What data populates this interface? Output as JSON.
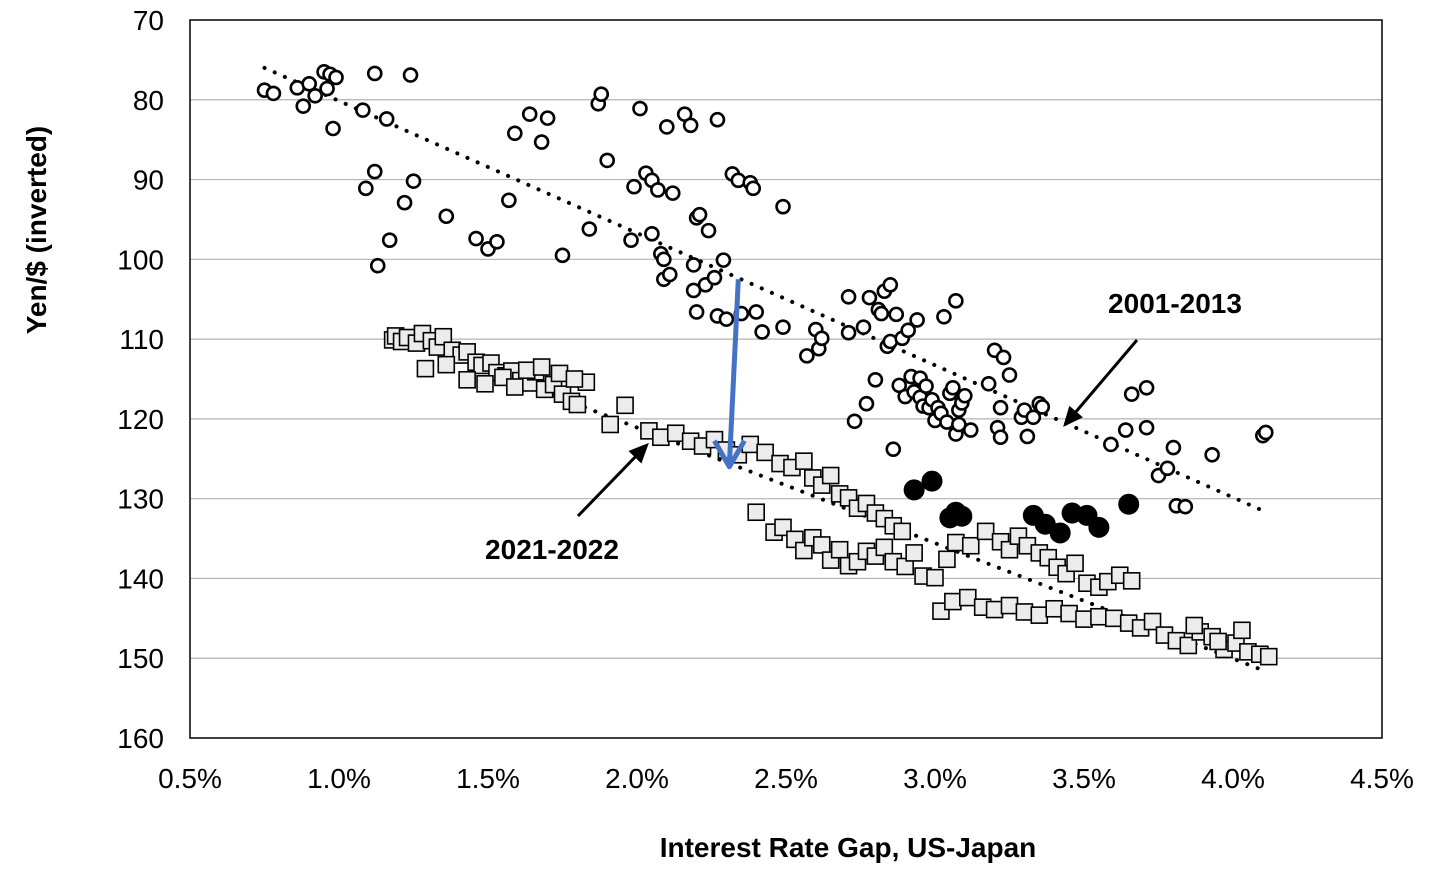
{
  "chart_data": {
    "type": "scatter",
    "title": "",
    "xlabel": "Interest Rate Gap, US-Japan",
    "ylabel": "Yen/$ (inverted)",
    "xlim": [
      0.5,
      4.5
    ],
    "ylim": [
      160,
      70
    ],
    "y_inverted": true,
    "grid": "horizontal",
    "x_ticks": [
      0.5,
      1.0,
      1.5,
      2.0,
      2.5,
      3.0,
      3.5,
      4.0,
      4.5
    ],
    "x_tick_labels": [
      "0.5%",
      "1.0%",
      "1.5%",
      "2.0%",
      "2.5%",
      "3.0%",
      "3.5%",
      "4.0%",
      "4.5%"
    ],
    "y_ticks": [
      70,
      80,
      90,
      100,
      110,
      120,
      130,
      140,
      150,
      160
    ],
    "y_tick_labels": [
      "70",
      "80",
      "90",
      "100",
      "110",
      "120",
      "130",
      "140",
      "150",
      "160"
    ],
    "annotations": [
      {
        "text": "2001-2013",
        "points_to": [
          3.43,
          121
        ]
      },
      {
        "text": "2021-2022",
        "points_to": [
          2.04,
          123
        ]
      }
    ],
    "shift_arrow": {
      "from": [
        2.34,
        102.5
      ],
      "to": [
        2.31,
        126
      ],
      "color": "#4472c4"
    },
    "trendlines": [
      {
        "period": "2001-2013",
        "from": [
          0.75,
          76
        ],
        "to": [
          4.1,
          131.5
        ]
      },
      {
        "period": "2021-2022",
        "from": [
          1.2,
          109.5
        ],
        "to": [
          4.1,
          151.5
        ]
      }
    ],
    "series": [
      {
        "marker": "open-circle",
        "points": [
          [
            0.75,
            78.8
          ],
          [
            0.78,
            79.2
          ],
          [
            0.86,
            78.5
          ],
          [
            0.88,
            80.8
          ],
          [
            0.9,
            78.0
          ],
          [
            0.92,
            79.5
          ],
          [
            0.95,
            76.5
          ],
          [
            0.96,
            78.6
          ],
          [
            0.97,
            76.8
          ],
          [
            0.99,
            77.2
          ],
          [
            0.98,
            83.6
          ],
          [
            1.08,
            81.3
          ],
          [
            1.12,
            76.7
          ],
          [
            1.16,
            82.4
          ],
          [
            1.24,
            76.9
          ],
          [
            1.09,
            91.1
          ],
          [
            1.12,
            89.0
          ],
          [
            1.13,
            100.8
          ],
          [
            1.17,
            97.6
          ],
          [
            1.22,
            92.9
          ],
          [
            1.25,
            90.2
          ],
          [
            1.36,
            94.6
          ],
          [
            1.46,
            97.4
          ],
          [
            1.5,
            98.7
          ],
          [
            1.53,
            97.8
          ],
          [
            1.57,
            92.6
          ],
          [
            1.59,
            84.2
          ],
          [
            1.64,
            81.8
          ],
          [
            1.68,
            85.3
          ],
          [
            1.7,
            82.3
          ],
          [
            1.75,
            99.5
          ],
          [
            1.84,
            96.2
          ],
          [
            1.87,
            80.5
          ],
          [
            1.88,
            79.3
          ],
          [
            1.9,
            87.6
          ],
          [
            1.98,
            97.6
          ],
          [
            1.99,
            90.9
          ],
          [
            2.01,
            81.1
          ],
          [
            2.03,
            89.2
          ],
          [
            2.05,
            90.1
          ],
          [
            2.05,
            96.8
          ],
          [
            2.07,
            91.3
          ],
          [
            2.08,
            99.3
          ],
          [
            2.09,
            102.5
          ],
          [
            2.09,
            100.0
          ],
          [
            2.1,
            83.4
          ],
          [
            2.11,
            101.9
          ],
          [
            2.12,
            91.7
          ],
          [
            2.16,
            81.8
          ],
          [
            2.18,
            83.2
          ],
          [
            2.19,
            100.7
          ],
          [
            2.19,
            103.9
          ],
          [
            2.2,
            94.8
          ],
          [
            2.2,
            106.6
          ],
          [
            2.21,
            94.4
          ],
          [
            2.23,
            103.2
          ],
          [
            2.24,
            96.4
          ],
          [
            2.26,
            102.3
          ],
          [
            2.27,
            82.5
          ],
          [
            2.27,
            107.1
          ],
          [
            2.29,
            100.1
          ],
          [
            2.3,
            107.5
          ],
          [
            2.32,
            89.3
          ],
          [
            2.34,
            90.1
          ],
          [
            2.35,
            106.8
          ],
          [
            2.38,
            90.4
          ],
          [
            2.39,
            91.1
          ],
          [
            2.4,
            106.6
          ],
          [
            2.42,
            109.1
          ],
          [
            2.49,
            93.4
          ],
          [
            2.49,
            108.5
          ],
          [
            2.57,
            112.1
          ],
          [
            2.6,
            108.8
          ],
          [
            2.61,
            111.2
          ],
          [
            2.62,
            109.9
          ],
          [
            2.71,
            104.7
          ],
          [
            2.71,
            109.2
          ],
          [
            2.73,
            120.3
          ],
          [
            2.76,
            108.5
          ],
          [
            2.77,
            118.1
          ],
          [
            2.78,
            104.8
          ],
          [
            2.8,
            115.1
          ],
          [
            2.81,
            106.3
          ],
          [
            2.82,
            106.8
          ],
          [
            2.83,
            104.0
          ],
          [
            2.84,
            110.9
          ],
          [
            2.85,
            103.2
          ],
          [
            2.85,
            110.3
          ],
          [
            2.86,
            123.8
          ],
          [
            2.87,
            106.9
          ],
          [
            2.88,
            115.8
          ],
          [
            2.89,
            109.9
          ],
          [
            2.9,
            117.2
          ],
          [
            2.91,
            108.9
          ],
          [
            2.92,
            114.7
          ],
          [
            2.93,
            116.6
          ],
          [
            2.94,
            107.6
          ],
          [
            2.95,
            114.9
          ],
          [
            2.95,
            117.3
          ],
          [
            2.96,
            118.4
          ],
          [
            2.97,
            115.9
          ],
          [
            2.98,
            118.6
          ],
          [
            2.99,
            117.6
          ],
          [
            3.0,
            120.2
          ],
          [
            3.01,
            118.6
          ],
          [
            3.02,
            119.3
          ],
          [
            3.03,
            107.2
          ],
          [
            3.04,
            120.4
          ],
          [
            3.05,
            116.8
          ],
          [
            3.06,
            116.1
          ],
          [
            3.07,
            105.2
          ],
          [
            3.07,
            121.9
          ],
          [
            3.08,
            120.7
          ],
          [
            3.08,
            118.9
          ],
          [
            3.09,
            118.0
          ],
          [
            3.1,
            117.1
          ],
          [
            3.12,
            121.4
          ],
          [
            3.18,
            115.6
          ],
          [
            3.2,
            111.4
          ],
          [
            3.21,
            121.1
          ],
          [
            3.22,
            118.6
          ],
          [
            3.22,
            122.3
          ],
          [
            3.23,
            112.3
          ],
          [
            3.25,
            114.5
          ],
          [
            3.29,
            119.8
          ],
          [
            3.3,
            118.9
          ],
          [
            3.31,
            122.2
          ],
          [
            3.33,
            119.8
          ],
          [
            3.35,
            118.1
          ],
          [
            3.36,
            118.5
          ],
          [
            3.59,
            123.2
          ],
          [
            3.64,
            121.4
          ],
          [
            3.66,
            116.9
          ],
          [
            3.71,
            121.1
          ],
          [
            3.71,
            116.1
          ],
          [
            3.75,
            127.1
          ],
          [
            3.78,
            126.2
          ],
          [
            3.8,
            123.6
          ],
          [
            3.81,
            130.9
          ],
          [
            3.84,
            131.0
          ],
          [
            3.93,
            124.5
          ],
          [
            4.1,
            122.1
          ],
          [
            4.11,
            121.7
          ]
        ]
      },
      {
        "marker": "filled-circle",
        "points": [
          [
            2.93,
            128.9
          ],
          [
            2.99,
            127.8
          ],
          [
            3.05,
            132.4
          ],
          [
            3.07,
            131.7
          ],
          [
            3.09,
            132.2
          ],
          [
            3.33,
            132.1
          ],
          [
            3.37,
            133.2
          ],
          [
            3.42,
            134.3
          ],
          [
            3.46,
            131.8
          ],
          [
            3.51,
            132.1
          ],
          [
            3.55,
            133.6
          ],
          [
            3.65,
            130.7
          ]
        ]
      },
      {
        "marker": "open-square",
        "points": [
          [
            1.18,
            110.1
          ],
          [
            1.19,
            109.6
          ],
          [
            1.21,
            110.3
          ],
          [
            1.23,
            109.8
          ],
          [
            1.26,
            110.5
          ],
          [
            1.28,
            109.3
          ],
          [
            1.31,
            110.2
          ],
          [
            1.33,
            111.0
          ],
          [
            1.35,
            109.7
          ],
          [
            1.38,
            111.4
          ],
          [
            1.41,
            112.0
          ],
          [
            1.43,
            111.6
          ],
          [
            1.46,
            112.9
          ],
          [
            1.48,
            113.3
          ],
          [
            1.51,
            113.0
          ],
          [
            1.53,
            114.2
          ],
          [
            1.56,
            114.6
          ],
          [
            1.58,
            114.0
          ],
          [
            1.61,
            115.2
          ],
          [
            1.64,
            115.5
          ],
          [
            1.66,
            114.1
          ],
          [
            1.69,
            116.3
          ],
          [
            1.72,
            115.7
          ],
          [
            1.75,
            116.9
          ],
          [
            1.78,
            117.8
          ],
          [
            1.8,
            118.2
          ],
          [
            1.83,
            115.4
          ],
          [
            1.29,
            113.7
          ],
          [
            1.36,
            113.2
          ],
          [
            1.43,
            115.1
          ],
          [
            1.49,
            115.6
          ],
          [
            1.55,
            114.8
          ],
          [
            1.59,
            116.0
          ],
          [
            1.63,
            113.9
          ],
          [
            1.68,
            113.5
          ],
          [
            1.74,
            114.3
          ],
          [
            1.79,
            115.0
          ],
          [
            1.91,
            120.7
          ],
          [
            1.96,
            118.3
          ],
          [
            2.04,
            121.5
          ],
          [
            2.08,
            122.3
          ],
          [
            2.13,
            121.8
          ],
          [
            2.18,
            122.8
          ],
          [
            2.22,
            123.4
          ],
          [
            2.26,
            122.6
          ],
          [
            2.3,
            123.9
          ],
          [
            2.34,
            124.5
          ],
          [
            2.38,
            123.2
          ],
          [
            2.43,
            124.2
          ],
          [
            2.48,
            125.6
          ],
          [
            2.52,
            126.1
          ],
          [
            2.56,
            125.3
          ],
          [
            2.59,
            127.4
          ],
          [
            2.62,
            128.3
          ],
          [
            2.65,
            127.1
          ],
          [
            2.68,
            129.4
          ],
          [
            2.71,
            129.9
          ],
          [
            2.74,
            131.2
          ],
          [
            2.77,
            130.6
          ],
          [
            2.8,
            131.8
          ],
          [
            2.83,
            132.5
          ],
          [
            2.86,
            133.4
          ],
          [
            2.89,
            134.1
          ],
          [
            2.4,
            131.7
          ],
          [
            2.46,
            134.2
          ],
          [
            2.49,
            133.6
          ],
          [
            2.53,
            135.1
          ],
          [
            2.56,
            136.5
          ],
          [
            2.59,
            134.9
          ],
          [
            2.62,
            135.8
          ],
          [
            2.65,
            137.7
          ],
          [
            2.68,
            136.4
          ],
          [
            2.71,
            138.4
          ],
          [
            2.74,
            137.9
          ],
          [
            2.77,
            136.6
          ],
          [
            2.8,
            137.2
          ],
          [
            2.83,
            136.1
          ],
          [
            2.86,
            137.9
          ],
          [
            2.9,
            138.5
          ],
          [
            2.93,
            136.8
          ],
          [
            2.96,
            139.7
          ],
          [
            3.0,
            139.9
          ],
          [
            3.04,
            137.6
          ],
          [
            3.07,
            135.5
          ],
          [
            3.12,
            135.9
          ],
          [
            3.17,
            134.1
          ],
          [
            3.22,
            135.4
          ],
          [
            3.25,
            136.4
          ],
          [
            3.28,
            134.7
          ],
          [
            3.31,
            135.9
          ],
          [
            3.35,
            136.8
          ],
          [
            3.38,
            137.4
          ],
          [
            3.41,
            138.6
          ],
          [
            3.44,
            139.4
          ],
          [
            3.47,
            138.1
          ],
          [
            3.51,
            140.6
          ],
          [
            3.55,
            141.1
          ],
          [
            3.58,
            140.4
          ],
          [
            3.62,
            139.6
          ],
          [
            3.66,
            140.3
          ],
          [
            3.02,
            144.1
          ],
          [
            3.06,
            142.9
          ],
          [
            3.11,
            142.4
          ],
          [
            3.16,
            143.6
          ],
          [
            3.2,
            143.9
          ],
          [
            3.25,
            143.4
          ],
          [
            3.3,
            144.2
          ],
          [
            3.35,
            144.6
          ],
          [
            3.4,
            143.8
          ],
          [
            3.45,
            144.4
          ],
          [
            3.5,
            145.1
          ],
          [
            3.55,
            144.8
          ],
          [
            3.6,
            145.0
          ],
          [
            3.65,
            145.6
          ],
          [
            3.69,
            146.2
          ],
          [
            3.73,
            145.4
          ],
          [
            3.77,
            147.1
          ],
          [
            3.81,
            147.8
          ],
          [
            3.85,
            148.4
          ],
          [
            3.89,
            146.7
          ],
          [
            3.93,
            147.3
          ],
          [
            3.97,
            148.9
          ],
          [
            4.01,
            148.1
          ],
          [
            4.05,
            149.2
          ],
          [
            4.09,
            149.5
          ],
          [
            4.12,
            149.8
          ],
          [
            3.87,
            145.9
          ],
          [
            3.95,
            147.9
          ],
          [
            4.03,
            146.5
          ]
        ]
      }
    ]
  }
}
